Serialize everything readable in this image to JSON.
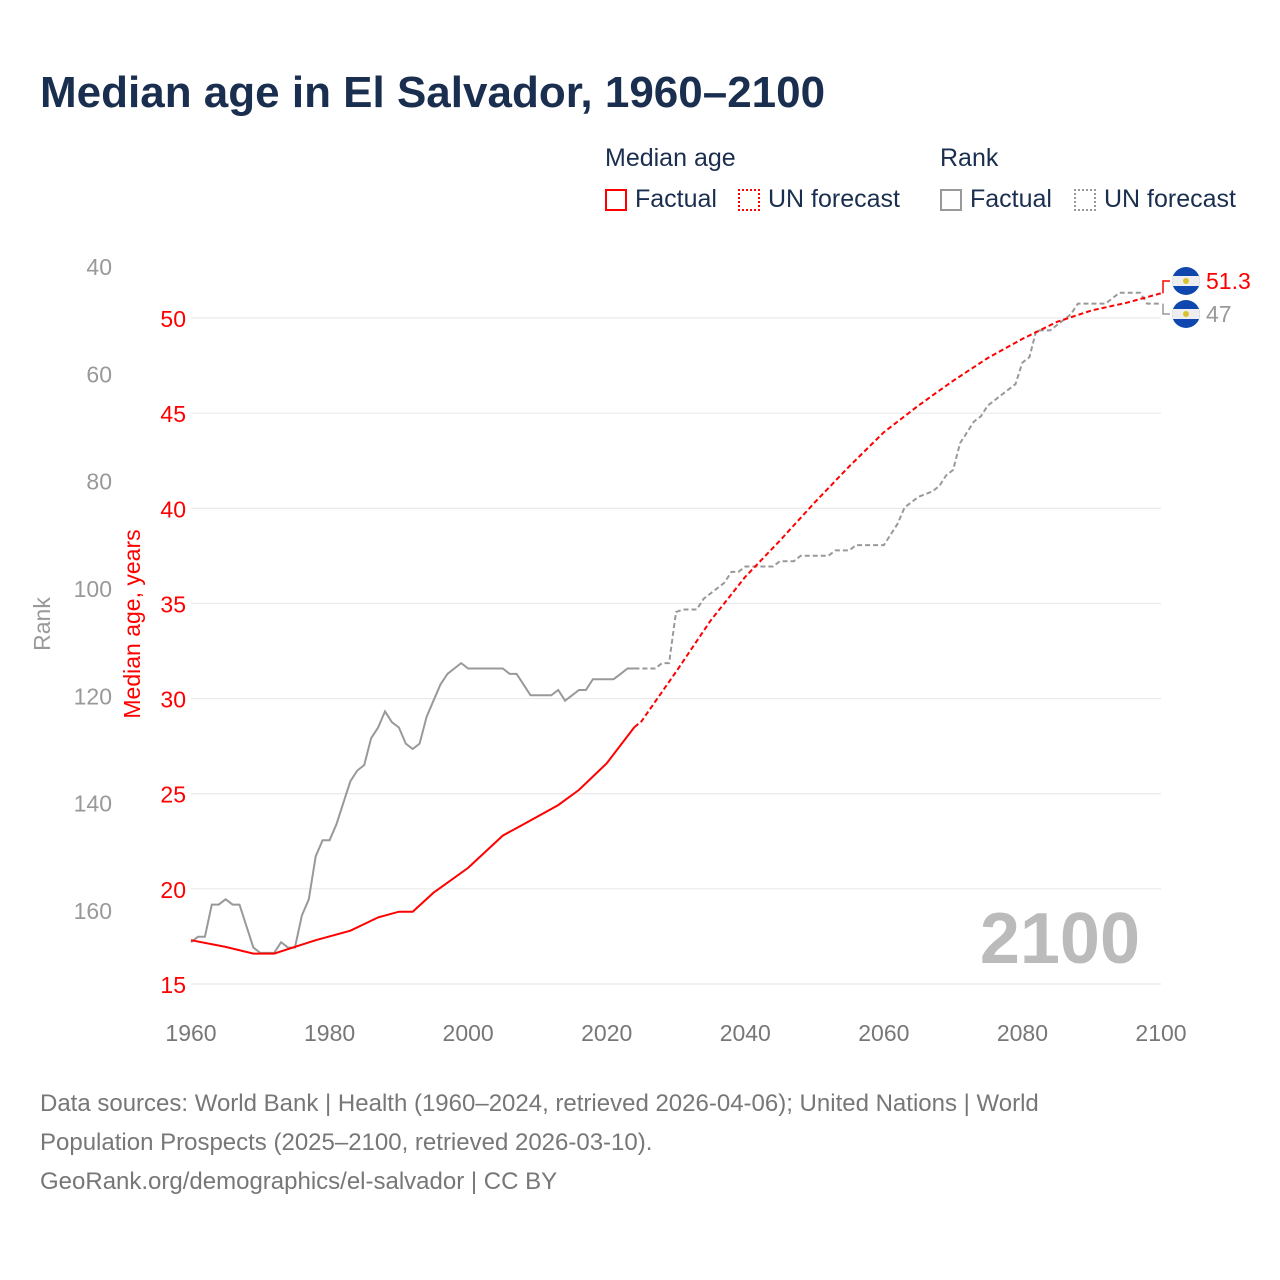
{
  "title": "Median age in El Salvador, 1960–2100",
  "legend": {
    "median_heading": "Median age",
    "rank_heading": "Rank",
    "median_factual": "Factual",
    "median_forecast": "UN forecast",
    "rank_factual": "Factual",
    "rank_forecast": "UN forecast"
  },
  "colors": {
    "median": "#ff0000",
    "rank": "#999999",
    "title": "#1a2e4f"
  },
  "chart_data": {
    "type": "line",
    "title": "Median age in El Salvador, 1960–2100",
    "xlabel": "",
    "ylabel_left_outer": "Rank",
    "ylabel_left_inner": "Median age, years",
    "x_ticks": [
      "1960",
      "1980",
      "2000",
      "2020",
      "2040",
      "2060",
      "2080",
      "2100"
    ],
    "xlim": [
      1960,
      2100
    ],
    "median_ticks": [
      "50",
      "45",
      "40",
      "35",
      "30",
      "25",
      "20",
      "15"
    ],
    "median_ylim": [
      15,
      50
    ],
    "rank_ticks": [
      "40",
      "60",
      "80",
      "100",
      "120",
      "140",
      "160"
    ],
    "rank_ylim_inverted": [
      40,
      160
    ],
    "year_watermark": "2100",
    "forecast_start": 2024,
    "series": [
      {
        "name": "Median age",
        "points": [
          [
            1960,
            17.3
          ],
          [
            1965,
            16.95
          ],
          [
            1969,
            16.6
          ],
          [
            1972,
            16.6
          ],
          [
            1978,
            17.3
          ],
          [
            1983,
            17.8
          ],
          [
            1987,
            18.5
          ],
          [
            1990,
            18.8
          ],
          [
            1992,
            18.8
          ],
          [
            1995,
            19.8
          ],
          [
            2000,
            21.1
          ],
          [
            2005,
            22.8
          ],
          [
            2008,
            23.4
          ],
          [
            2013,
            24.4
          ],
          [
            2016,
            25.2
          ],
          [
            2020,
            26.6
          ],
          [
            2024,
            28.5
          ],
          [
            2025,
            28.8
          ],
          [
            2030,
            31.4
          ],
          [
            2035,
            34.1
          ],
          [
            2040,
            36.4
          ],
          [
            2045,
            38.3
          ],
          [
            2050,
            40.3
          ],
          [
            2055,
            42.2
          ],
          [
            2060,
            44.0
          ],
          [
            2065,
            45.4
          ],
          [
            2070,
            46.7
          ],
          [
            2075,
            47.9
          ],
          [
            2080,
            48.9
          ],
          [
            2085,
            49.8
          ],
          [
            2090,
            50.4
          ],
          [
            2095,
            50.8
          ],
          [
            2100,
            51.3
          ]
        ],
        "end_label": "51.3"
      },
      {
        "name": "Rank",
        "points": [
          [
            1960,
            166
          ],
          [
            1961,
            165
          ],
          [
            1962,
            165
          ],
          [
            1963,
            159
          ],
          [
            1964,
            159
          ],
          [
            1965,
            158
          ],
          [
            1966,
            159
          ],
          [
            1967,
            159
          ],
          [
            1968,
            163
          ],
          [
            1969,
            167
          ],
          [
            1970,
            168
          ],
          [
            1972,
            168
          ],
          [
            1973,
            166
          ],
          [
            1974,
            167
          ],
          [
            1975,
            167
          ],
          [
            1976,
            161
          ],
          [
            1977,
            158
          ],
          [
            1978,
            150
          ],
          [
            1979,
            147
          ],
          [
            1980,
            147
          ],
          [
            1981,
            144
          ],
          [
            1982,
            140
          ],
          [
            1983,
            136
          ],
          [
            1984,
            134
          ],
          [
            1985,
            133
          ],
          [
            1986,
            128
          ],
          [
            1987,
            126
          ],
          [
            1988,
            123
          ],
          [
            1989,
            125
          ],
          [
            1990,
            126
          ],
          [
            1991,
            129
          ],
          [
            1992,
            130
          ],
          [
            1993,
            129
          ],
          [
            1994,
            124
          ],
          [
            1995,
            121
          ],
          [
            1996,
            118
          ],
          [
            1997,
            116
          ],
          [
            1998,
            115
          ],
          [
            1999,
            114
          ],
          [
            2000,
            115
          ],
          [
            2005,
            115
          ],
          [
            2006,
            116
          ],
          [
            2007,
            116
          ],
          [
            2008,
            118
          ],
          [
            2009,
            120
          ],
          [
            2012,
            120
          ],
          [
            2013,
            119
          ],
          [
            2014,
            121
          ],
          [
            2015,
            120
          ],
          [
            2016,
            119
          ],
          [
            2017,
            119
          ],
          [
            2018,
            117
          ],
          [
            2021,
            117
          ],
          [
            2022,
            116
          ],
          [
            2023,
            115
          ],
          [
            2024,
            115
          ],
          [
            2027,
            115
          ],
          [
            2028,
            114
          ],
          [
            2029,
            114
          ],
          [
            2030,
            104.5
          ],
          [
            2031,
            104
          ],
          [
            2033,
            104
          ],
          [
            2034,
            102
          ],
          [
            2035,
            101
          ],
          [
            2036,
            100
          ],
          [
            2037,
            99
          ],
          [
            2038,
            97
          ],
          [
            2039,
            97
          ],
          [
            2040,
            96
          ],
          [
            2044,
            96
          ],
          [
            2045,
            95
          ],
          [
            2047,
            95
          ],
          [
            2048,
            94
          ],
          [
            2052,
            94
          ],
          [
            2053,
            93
          ],
          [
            2055,
            93
          ],
          [
            2056,
            92
          ],
          [
            2060,
            92
          ],
          [
            2062,
            88
          ],
          [
            2063,
            85
          ],
          [
            2064,
            84
          ],
          [
            2065,
            83
          ],
          [
            2067,
            82
          ],
          [
            2068,
            81
          ],
          [
            2069,
            79
          ],
          [
            2070,
            78
          ],
          [
            2071,
            73
          ],
          [
            2072,
            71
          ],
          [
            2073,
            69
          ],
          [
            2074,
            68
          ],
          [
            2075,
            66
          ],
          [
            2076,
            65
          ],
          [
            2077,
            64
          ],
          [
            2079,
            62
          ],
          [
            2080,
            58
          ],
          [
            2081,
            57
          ],
          [
            2082,
            52
          ],
          [
            2084,
            52
          ],
          [
            2085,
            51
          ],
          [
            2086,
            50
          ],
          [
            2087,
            49
          ],
          [
            2088,
            47
          ],
          [
            2092,
            47
          ],
          [
            2093,
            46
          ],
          [
            2094,
            45
          ],
          [
            2097,
            45
          ],
          [
            2098,
            47
          ],
          [
            2100,
            47
          ]
        ],
        "end_label": "47"
      }
    ]
  },
  "footer": {
    "line1": "Data sources: World Bank | Health (1960–2024, retrieved 2026-04-06); United Nations | World",
    "line2": "Population Prospects (2025–2100, retrieved 2026-03-10).",
    "line3": "GeoRank.org/demographics/el-salvador | CC BY"
  }
}
